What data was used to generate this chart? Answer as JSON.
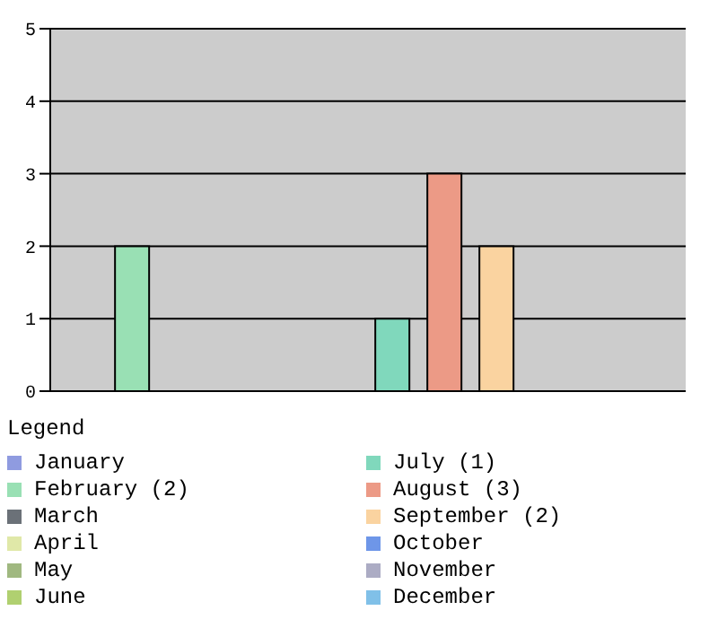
{
  "chart_data": {
    "type": "bar",
    "legend_title": "Legend",
    "categories": [
      null
    ],
    "series": [
      {
        "name": "January",
        "color": "#8f9be0",
        "values": [
          0
        ]
      },
      {
        "name": "February (2)",
        "color": "#99e0b4",
        "values": [
          2
        ]
      },
      {
        "name": "March",
        "color": "#6b7178",
        "values": [
          0
        ]
      },
      {
        "name": "April",
        "color": "#e0e8a8",
        "values": [
          0
        ]
      },
      {
        "name": "May",
        "color": "#a0b880",
        "values": [
          0
        ]
      },
      {
        "name": "June",
        "color": "#b0d070",
        "values": [
          0
        ]
      },
      {
        "name": "July (1)",
        "color": "#80d8bc",
        "values": [
          1
        ]
      },
      {
        "name": "August (3)",
        "color": "#ec9a86",
        "values": [
          3
        ]
      },
      {
        "name": "September (2)",
        "color": "#fad3a0",
        "values": [
          2
        ]
      },
      {
        "name": "October",
        "color": "#6e96e8",
        "values": [
          0
        ]
      },
      {
        "name": "November",
        "color": "#acacc4",
        "values": [
          0
        ]
      },
      {
        "name": "December",
        "color": "#80c0e8",
        "values": [
          0
        ]
      }
    ],
    "ylim": [
      0,
      5
    ],
    "yticks": [
      0,
      1,
      2,
      3,
      4,
      5
    ],
    "grid": "y",
    "legend": "bottom",
    "tick_labels": "y"
  }
}
